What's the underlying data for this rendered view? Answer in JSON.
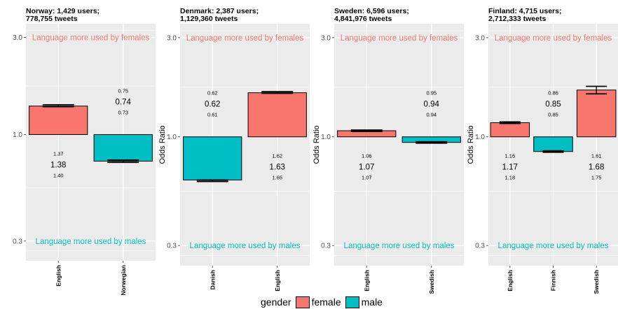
{
  "colors": {
    "female": "#F8766D",
    "male": "#00BFC4",
    "panel_bg": "#EBEBEB",
    "grid": "#FFFFFF"
  },
  "legend": {
    "title": "gender",
    "female_label": "female",
    "male_label": "male"
  },
  "chart_data": [
    {
      "type": "bar",
      "title_line1": "Norway: 1,429 users;",
      "title_line2": "778,755 tweets",
      "ylabel": "Odds Ratio",
      "yscale": "log",
      "ylim": [
        0.24,
        3.5
      ],
      "yticks": [
        {
          "value": 0.3,
          "label": "0.3"
        },
        {
          "value": 1.0,
          "label": "1.0"
        },
        {
          "value": 3.0,
          "label": "3.0"
        }
      ],
      "annot_top": "Language more used by females",
      "annot_bottom": "Language more used by males",
      "showYLabel": false,
      "categories": [
        {
          "name": "English",
          "gender": "female",
          "or": 1.38,
          "lo_label": "1.37",
          "mid_label": "1.38",
          "hi_label": "1.40"
        },
        {
          "name": "Norwegian",
          "gender": "male",
          "or": 0.74,
          "lo_label": "0.75",
          "mid_label": "0.74",
          "hi_label": "0.73"
        }
      ]
    },
    {
      "type": "bar",
      "title_line1": "Denmark: 2,387 users;",
      "title_line2": "1,129,360 tweets",
      "ylabel": "Odds Ratio",
      "yscale": "log",
      "ylim": [
        0.24,
        3.5
      ],
      "yticks": [
        {
          "value": 0.3,
          "label": "0.3"
        },
        {
          "value": 1.0,
          "label": "1.0"
        },
        {
          "value": 3.0,
          "label": "3.0"
        }
      ],
      "annot_top": "Language more used by females",
      "annot_bottom": "Language more used by males",
      "showYLabel": true,
      "categories": [
        {
          "name": "Danish",
          "gender": "male",
          "or": 0.62,
          "lo_label": "0.62",
          "mid_label": "0.62",
          "hi_label": "0.61"
        },
        {
          "name": "English",
          "gender": "female",
          "or": 1.63,
          "lo_label": "1.62",
          "mid_label": "1.63",
          "hi_label": "1.65"
        }
      ]
    },
    {
      "type": "bar",
      "title_line1": "Sweden: 6,596 users;",
      "title_line2": "4,841,976 tweets",
      "ylabel": "Odds Ratio",
      "yscale": "log",
      "ylim": [
        0.24,
        3.5
      ],
      "yticks": [
        {
          "value": 0.3,
          "label": "0.3"
        },
        {
          "value": 1.0,
          "label": "1.0"
        },
        {
          "value": 3.0,
          "label": "3.0"
        }
      ],
      "annot_top": "Language more used by females",
      "annot_bottom": "Language more used by males",
      "showYLabel": true,
      "categories": [
        {
          "name": "English",
          "gender": "female",
          "or": 1.07,
          "lo_label": "1.06",
          "mid_label": "1.07",
          "hi_label": "1.07"
        },
        {
          "name": "Swedish",
          "gender": "male",
          "or": 0.94,
          "lo_label": "0.95",
          "mid_label": "0.94",
          "hi_label": "0.94"
        }
      ]
    },
    {
      "type": "bar",
      "title_line1": "Finland: 4,715 users;",
      "title_line2": "2,712,333 tweets",
      "ylabel": "Odds Ratio",
      "yscale": "log",
      "ylim": [
        0.24,
        3.5
      ],
      "yticks": [
        {
          "value": 0.3,
          "label": "0.3"
        },
        {
          "value": 1.0,
          "label": "1.0"
        },
        {
          "value": 3.0,
          "label": "3.0"
        }
      ],
      "annot_top": "Language more used by females",
      "annot_bottom": "Language more used by males",
      "showYLabel": true,
      "categories": [
        {
          "name": "English",
          "gender": "female",
          "or": 1.17,
          "lo_label": "1.16",
          "mid_label": "1.17",
          "hi_label": "1.18"
        },
        {
          "name": "Finnish",
          "gender": "male",
          "or": 0.85,
          "lo_label": "0.86",
          "mid_label": "0.85",
          "hi_label": "0.85"
        },
        {
          "name": "Swedish",
          "gender": "female",
          "or": 1.68,
          "lo_label": "1.61",
          "mid_label": "1.68",
          "hi_label": "1.75"
        }
      ]
    }
  ]
}
